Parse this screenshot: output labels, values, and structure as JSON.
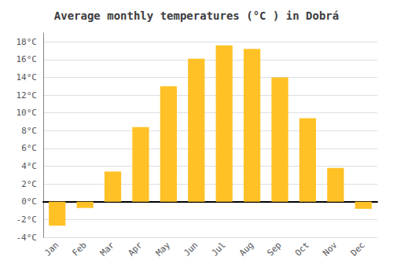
{
  "chart_data": {
    "type": "bar",
    "title": "Average monthly temperatures (°C ) in Dobrá",
    "categories": [
      "Jan",
      "Feb",
      "Mar",
      "Apr",
      "May",
      "Jun",
      "Jul",
      "Aug",
      "Sep",
      "Oct",
      "Nov",
      "Dec"
    ],
    "values": [
      -2.7,
      -0.7,
      3.4,
      8.4,
      13.0,
      16.1,
      17.6,
      17.2,
      14.0,
      9.4,
      3.8,
      -0.8
    ],
    "color": "#FFC125",
    "ylim": [
      -4,
      19
    ],
    "yticks": [
      {
        "value": -4,
        "label": "-4°C"
      },
      {
        "value": -2,
        "label": "-2°C"
      },
      {
        "value": 0,
        "label": "0°C"
      },
      {
        "value": 2,
        "label": "2°C"
      },
      {
        "value": 4,
        "label": "4°C"
      },
      {
        "value": 6,
        "label": "6°C"
      },
      {
        "value": 8,
        "label": "8°C"
      },
      {
        "value": 10,
        "label": "10°C"
      },
      {
        "value": 12,
        "label": "12°C"
      },
      {
        "value": 14,
        "label": "14°C"
      },
      {
        "value": 16,
        "label": "16°C"
      },
      {
        "value": 18,
        "label": "18°C"
      }
    ],
    "grid": true
  }
}
